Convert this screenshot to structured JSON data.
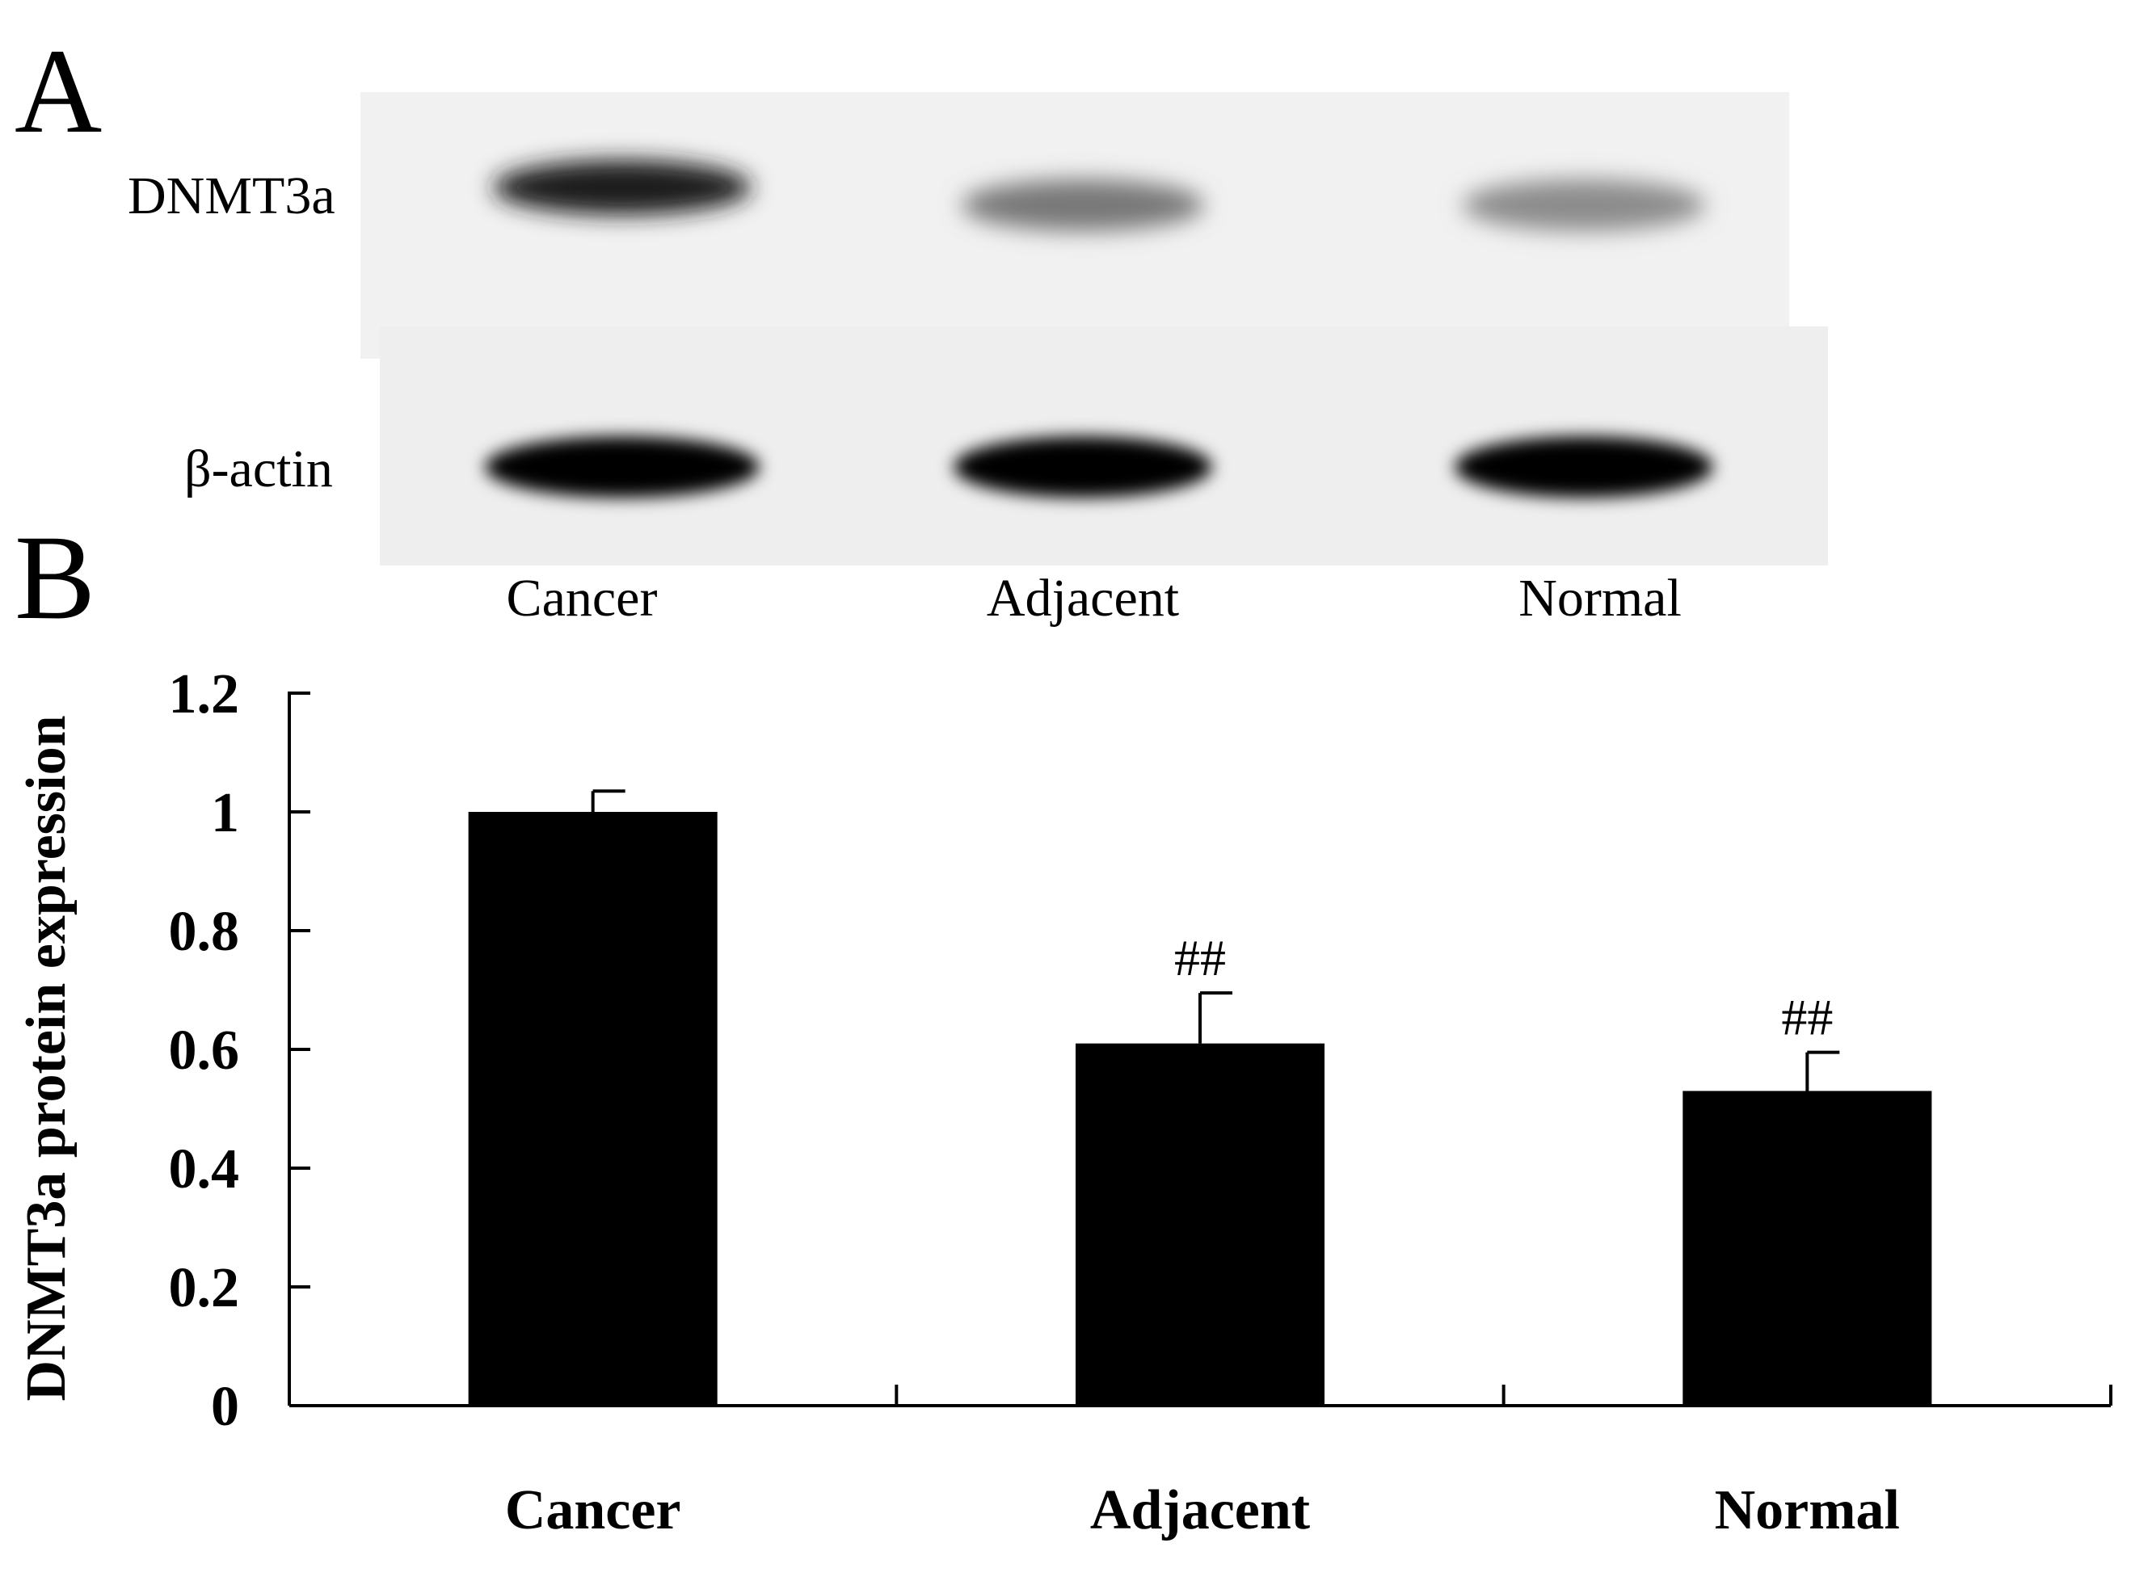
{
  "figure": {
    "panel_a": "A",
    "panel_b": "B"
  },
  "blot": {
    "bands": [
      "DNMT3a",
      "β-actin"
    ],
    "lanes": [
      "Cancer",
      "Adjacent",
      "Normal"
    ],
    "dnmt3a_relative_intensity": [
      1.0,
      0.55,
      0.45
    ],
    "bactin_relative_intensity": [
      1.0,
      1.0,
      1.0
    ]
  },
  "chart_data": {
    "type": "bar",
    "categories": [
      "Cancer",
      "Adjacent",
      "Normal"
    ],
    "values": [
      1.0,
      0.61,
      0.53
    ],
    "errors": [
      0.035,
      0.085,
      0.065
    ],
    "annotations": [
      "",
      "##",
      "##"
    ],
    "ylabel": "DNMT3a protein expression",
    "xlabel": "",
    "ylim": [
      0,
      1.2
    ],
    "yticks": [
      "0",
      "0.2",
      "0.4",
      "0.6",
      "0.8",
      "1",
      "1.2"
    ],
    "ytick_values": [
      0,
      0.2,
      0.4,
      0.6,
      0.8,
      1.0,
      1.2
    ],
    "bar_color": "#000000",
    "grid": false
  }
}
